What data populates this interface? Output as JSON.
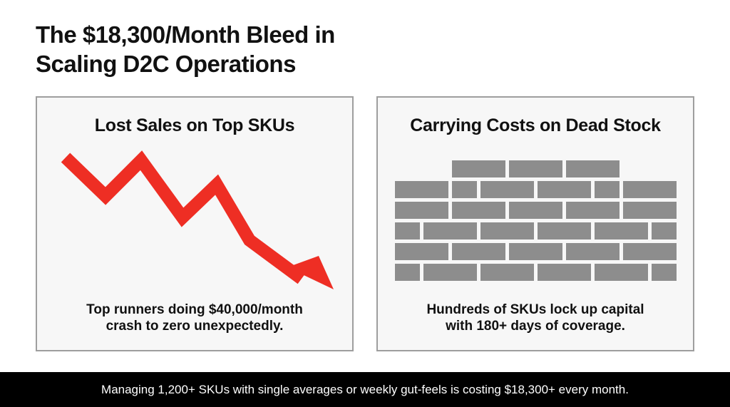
{
  "title": {
    "line1": "The $18,300/Month Bleed in",
    "line2": "Scaling D2C Operations"
  },
  "panels": [
    {
      "heading": "Lost Sales on Top SKUs",
      "icon": "downward-trend-arrow",
      "caption_line1": "Top runners doing $40,000/month",
      "caption_line2": "crash to zero unexpectedly."
    },
    {
      "heading": "Carrying Costs on Dead Stock",
      "icon": "brick-wall",
      "caption_line1": "Hundreds of SKUs lock up capital",
      "caption_line2": "with 180+ days of coverage."
    }
  ],
  "footer": {
    "text": "Managing 1,200+ SKUs with single averages or weekly gut-feels is costing $18,300+ every month."
  },
  "colors": {
    "arrow": "#ee2e24",
    "brick": "#8d8d8d",
    "panel_background": "#f7f7f7",
    "panel_border": "#9e9e9e",
    "footer_background": "#000000",
    "footer_text": "#ffffff"
  }
}
